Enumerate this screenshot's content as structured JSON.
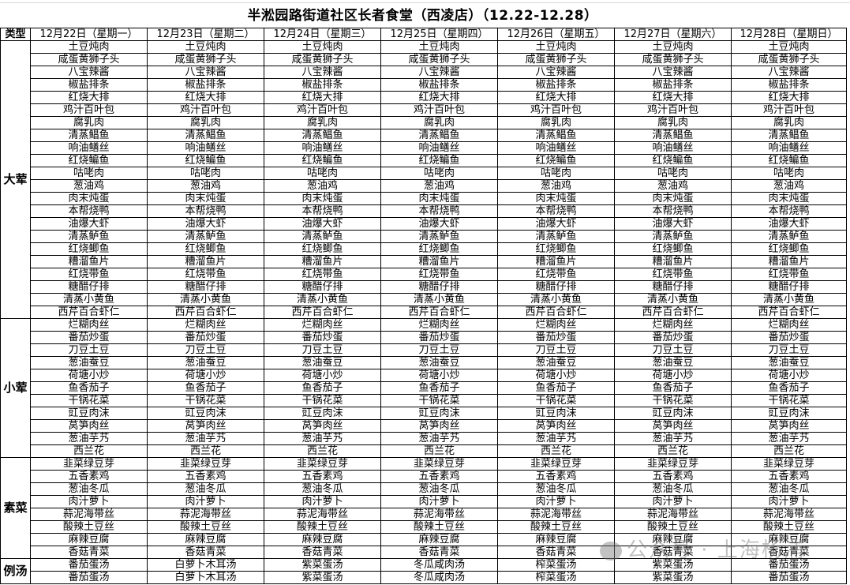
{
  "title": "半淞园路街道社区长者食堂（西凌店）（12.22-12.28）",
  "header": {
    "type_label": "类型",
    "days": [
      "12月22日（星期一）",
      "12月23日（星期二）",
      "12月24日（星期三）",
      "12月25日（星期四）",
      "12月26日（星期五）",
      "12月27日（星期六）",
      "12月28日（星期日）"
    ]
  },
  "categories": [
    {
      "name": "大荤",
      "rows": [
        "土豆炖肉",
        "咸蛋黄狮子头",
        "八宝辣酱",
        "椒盐排条",
        "红烧大排",
        "鸡汁百叶包",
        "腐乳肉",
        "清蒸鲳鱼",
        "响油鳝丝",
        "红烧鳊鱼",
        "咕咾肉",
        "葱油鸡",
        "肉末炖蛋",
        "本帮烧鸭",
        "油爆大虾",
        "清蒸鲈鱼",
        "红烧鲫鱼",
        "糟溜鱼片",
        "红烧带鱼",
        "糖醋仔排",
        "清蒸小黄鱼",
        "西芹百合虾仁"
      ]
    },
    {
      "name": "小荤",
      "rows": [
        "烂糊肉丝",
        "番茄炒蛋",
        "刀豆土豆",
        "葱油蚕豆",
        "荷塘小炒",
        "鱼香茄子",
        "干锅花菜",
        "豇豆肉沫",
        "莴笋肉丝",
        "葱油芋艿",
        "西兰花"
      ]
    },
    {
      "name": "素菜",
      "rows": [
        "韭菜绿豆芽",
        "五香素鸡",
        "葱油冬瓜",
        "肉汁萝卜",
        "蒜泥海带丝",
        "酸辣土豆丝",
        "麻辣豆腐",
        "香菇青菜"
      ]
    },
    {
      "name": "例汤",
      "rows": [
        [
          "番茄蛋汤",
          "白萝卜木耳汤",
          "紫菜蛋汤",
          "冬瓜咸肉汤",
          "榨菜蛋汤",
          "紫菜蛋汤",
          "番茄蛋汤"
        ],
        [
          "番茄蛋汤",
          "白萝卜木耳汤",
          "紫菜蛋汤",
          "冬瓜咸肉汤",
          "榨菜蛋汤",
          "紫菜蛋汤",
          "番茄蛋汤"
        ]
      ]
    }
  ],
  "watermark": "公众号 · 上海杨浦",
  "watermark_icon": "wechat-icon"
}
